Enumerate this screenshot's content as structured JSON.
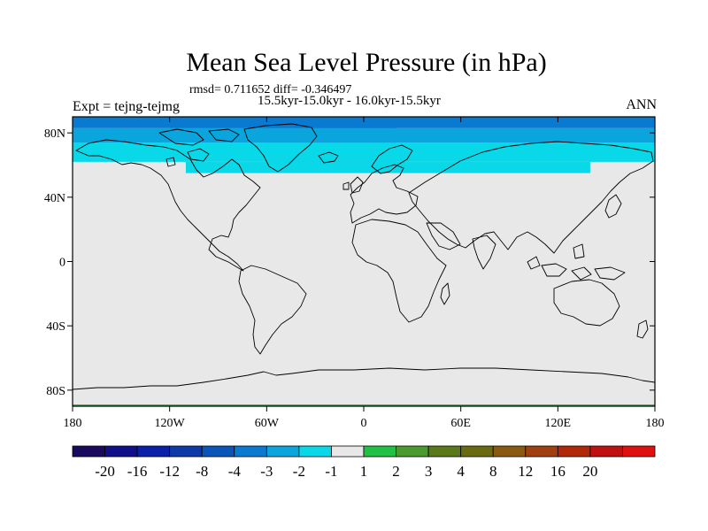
{
  "chart_data": {
    "type": "heatmap",
    "title": "Mean Sea Level Pressure (in hPa)",
    "stats": "rmsd= 0.711652 diff= -0.346497",
    "period": "15.5kyr-15.0kyr - 16.0kyr-15.5kyr",
    "left_label": "Expt = tejng-tejmg",
    "right_label": "ANN",
    "x_ticks": [
      "180",
      "120W",
      "60W",
      "0",
      "60E",
      "120E",
      "180"
    ],
    "x_tick_values": [
      -180,
      -120,
      -60,
      0,
      60,
      120,
      180
    ],
    "y_ticks": [
      "80N",
      "40N",
      "0",
      "40S",
      "80S"
    ],
    "y_tick_values": [
      80,
      40,
      0,
      -40,
      -80
    ],
    "xlim": [
      -180,
      180
    ],
    "ylim": [
      -90,
      90
    ],
    "colorbar": {
      "colors": [
        "#1a0a5e",
        "#0f0f8a",
        "#0c1fa8",
        "#0d3aa8",
        "#0a55b8",
        "#0a7ad0",
        "#0aa5dc",
        "#08d8e8",
        "#e8e8e8",
        "#22c044",
        "#4a9a30",
        "#5a7a1a",
        "#6a6a10",
        "#8a5a10",
        "#a04010",
        "#b02808",
        "#c01010",
        "#e01010"
      ],
      "labels": [
        "-20",
        "-16",
        "-12",
        "-8",
        "-4",
        "-3",
        "-2",
        "-1",
        "1",
        "2",
        "3",
        "4",
        "8",
        "12",
        "16",
        "20"
      ]
    },
    "field": [
      {
        "lat_min": 83,
        "lat_max": 90,
        "lon_min": -180,
        "lon_max": 180,
        "value": -3.5,
        "color": "#0a7ad0"
      },
      {
        "lat_min": 74,
        "lat_max": 83,
        "lon_min": -180,
        "lon_max": 180,
        "value": -2.5,
        "color": "#0aa5dc"
      },
      {
        "lat_min": 74,
        "lat_max": 90,
        "lon_min": -120,
        "lon_max": -60,
        "value": -1.5,
        "color": "#08d8e8"
      },
      {
        "lat_min": 62,
        "lat_max": 74,
        "lon_min": -180,
        "lon_max": 180,
        "value": -1.5,
        "color": "#08d8e8"
      },
      {
        "lat_min": 62,
        "lat_max": 86,
        "lon_min": -60,
        "lon_max": 20,
        "value": -2.5,
        "color": "#0aa5dc"
      },
      {
        "lat_min": 55,
        "lat_max": 62,
        "lon_min": -110,
        "lon_max": 140,
        "value": -1.5,
        "color": "#08d8e8"
      },
      {
        "lat_min": -90,
        "lat_max": 90,
        "lon_min": -180,
        "lon_max": 180,
        "value": 0,
        "color": "#e8e8e8"
      }
    ]
  }
}
